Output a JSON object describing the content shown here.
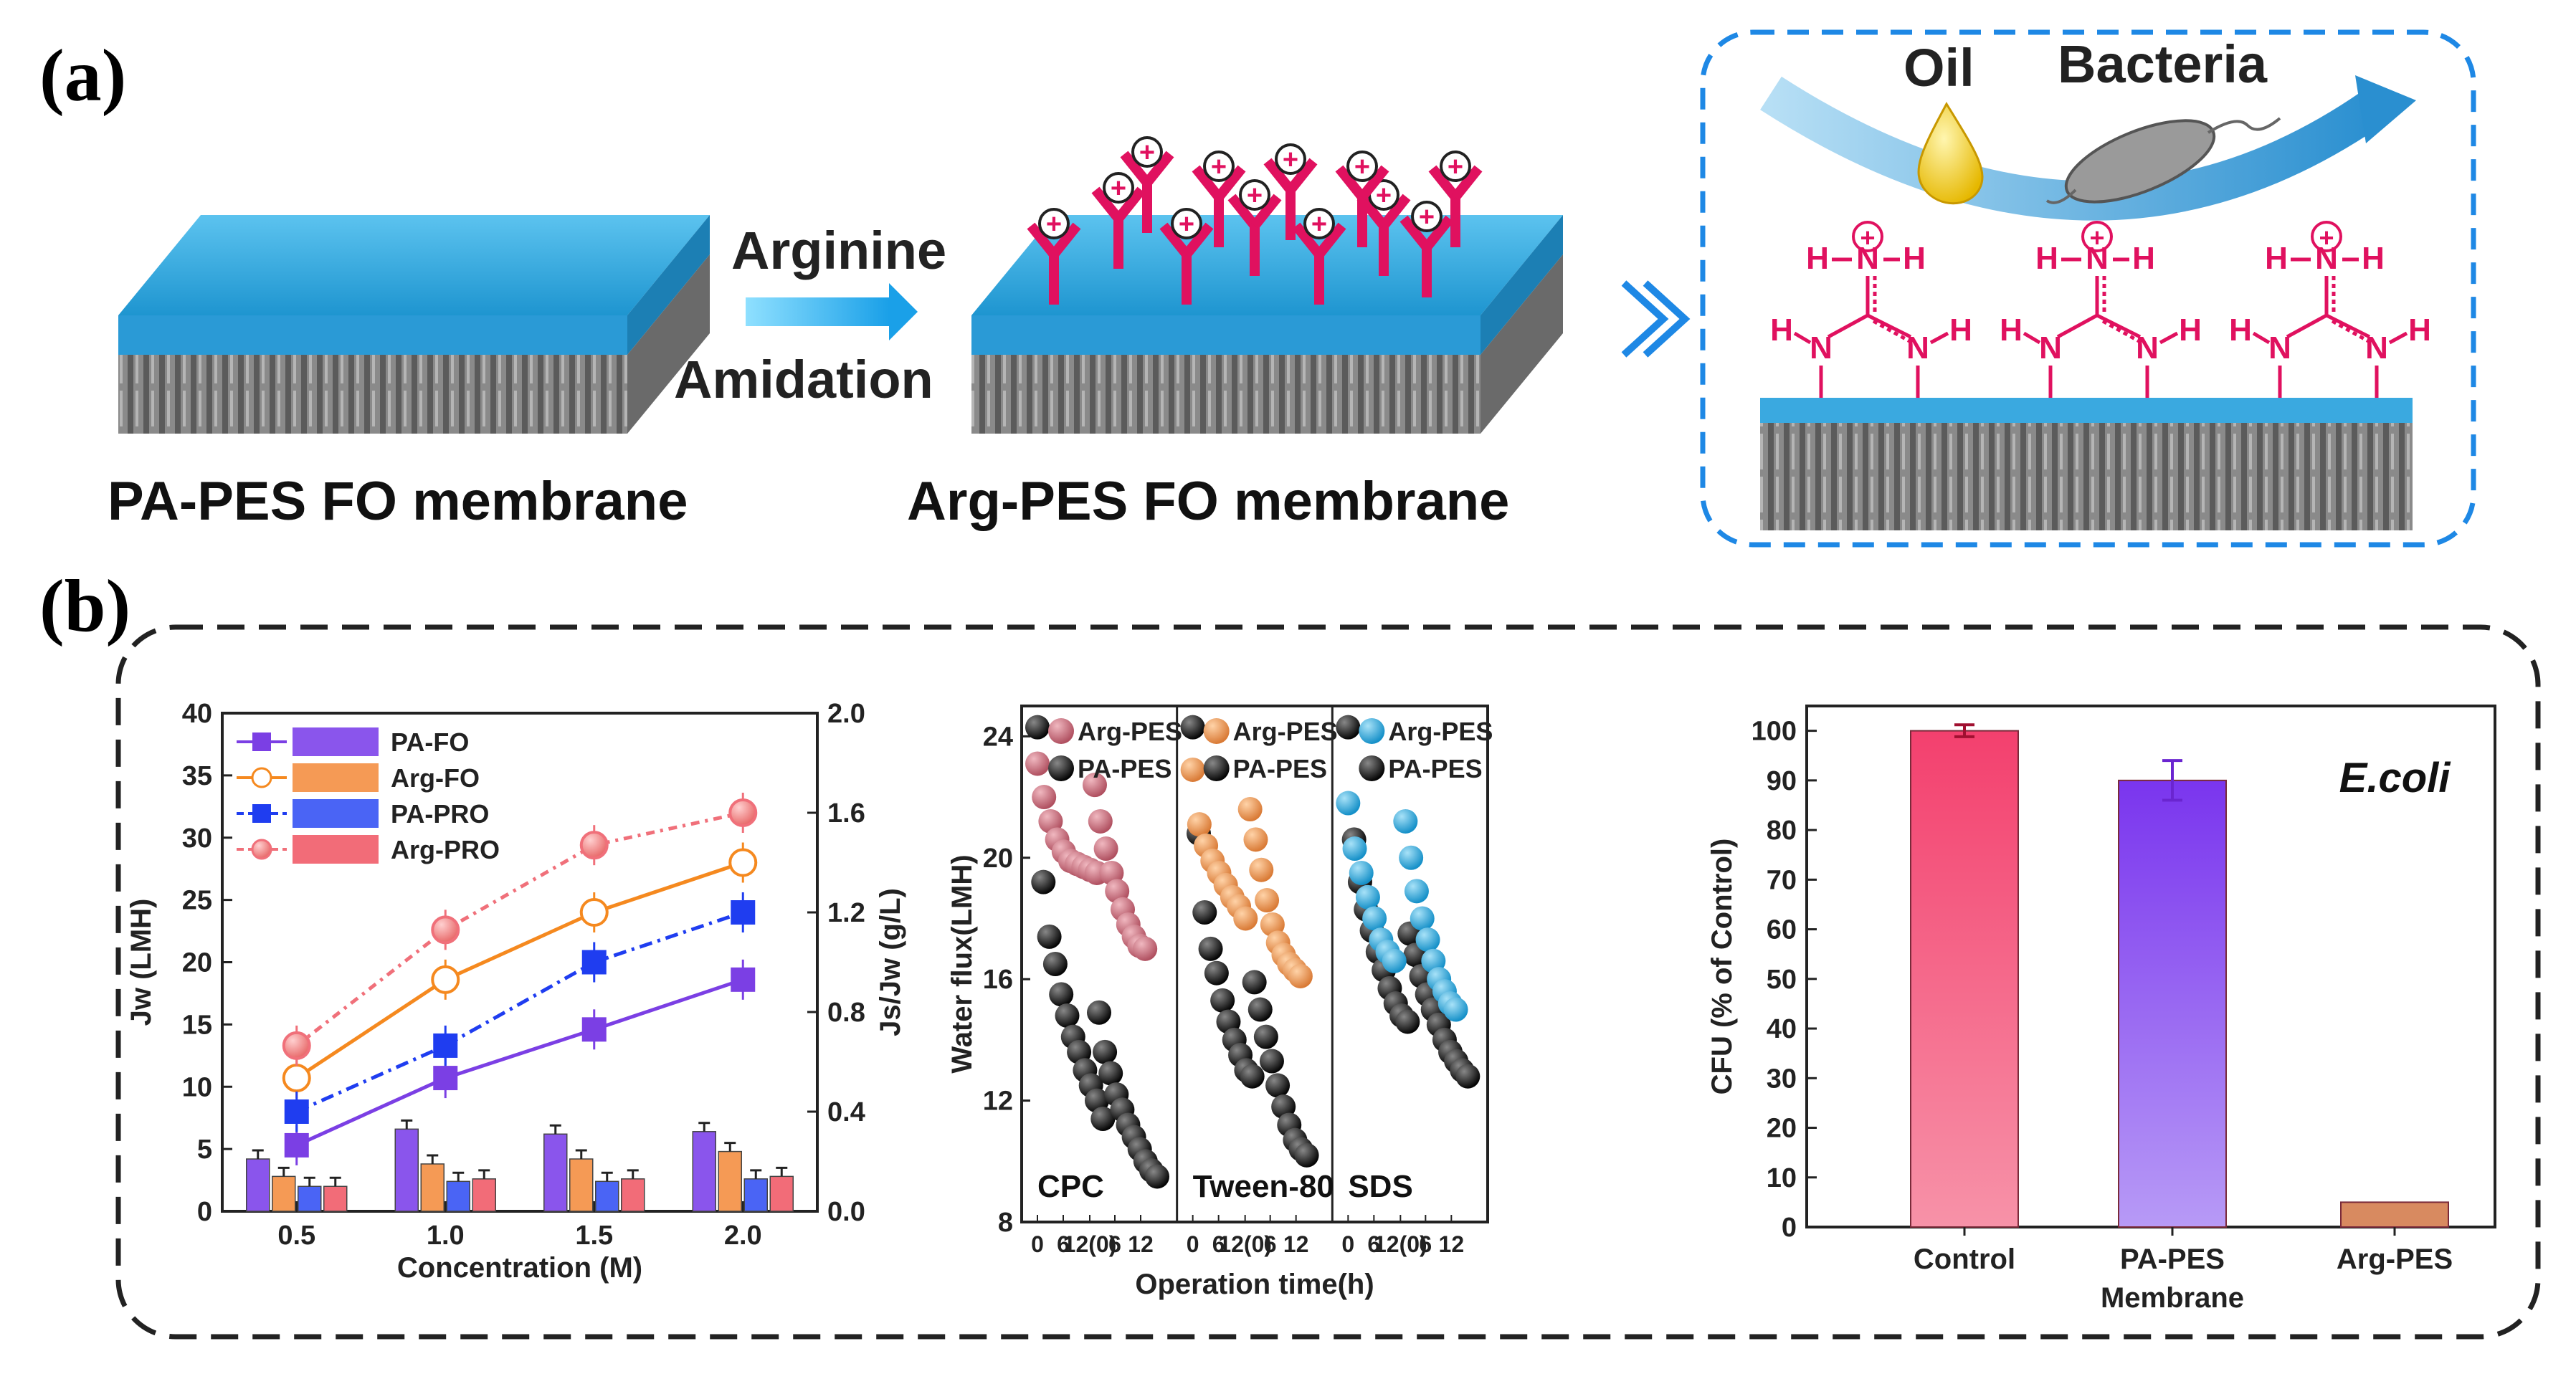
{
  "panel_a": {
    "label": "(a)",
    "left_membrane_caption": "PA-PES FO membrane",
    "right_membrane_caption": "Arg-PES FO membrane",
    "arrow_top_text": "Arginine",
    "arrow_bottom_text": "Amidation",
    "inset": {
      "oil_label": "Oil",
      "bacteria_label": "Bacteria",
      "charge_symbol": "+",
      "atom_H": "H",
      "atom_N": "N"
    },
    "colors": {
      "membrane_top": "#2aa3dc",
      "ligand": "#e0115f",
      "inset_border": "#1e88e5"
    }
  },
  "panel_b": {
    "label": "(b)",
    "chart_data": [
      {
        "type": "line+bar",
        "x_ticks": [
          "0.5",
          "1.0",
          "1.5",
          "2.0"
        ],
        "xlabel": "Concentration (M)",
        "ylabel_left": "Jw (LMH)",
        "ylabel_right": "Js/Jw (g/L)",
        "ylim_left": [
          0,
          40
        ],
        "ylim_right": [
          0,
          2.0
        ],
        "yticks_left": [
          "0",
          "5",
          "10",
          "15",
          "20",
          "25",
          "30",
          "35",
          "40"
        ],
        "yticks_right": [
          "0.0",
          "0.4",
          "0.8",
          "1.2",
          "1.6",
          "2.0"
        ],
        "categories": [
          0.5,
          1.0,
          1.5,
          2.0
        ],
        "series": [
          {
            "name": "PA-FO",
            "color": "#7b3fe4",
            "jw": [
              5.3,
              10.7,
              14.6,
              18.6
            ],
            "js_jw": [
              0.21,
              0.33,
              0.31,
              0.32
            ]
          },
          {
            "name": "Arg-FO",
            "color": "#f5891f",
            "jw": [
              10.7,
              18.6,
              24.0,
              28.0
            ],
            "js_jw": [
              0.14,
              0.19,
              0.21,
              0.24
            ]
          },
          {
            "name": "PA-PRO",
            "color": "#1f3df0",
            "jw": [
              8.0,
              13.3,
              20.0,
              24.0
            ],
            "js_jw": [
              0.1,
              0.12,
              0.12,
              0.13
            ]
          },
          {
            "name": "Arg-PRO",
            "color": "#f0707a",
            "jw": [
              13.3,
              22.6,
              29.4,
              32.0
            ],
            "js_jw": [
              0.1,
              0.13,
              0.13,
              0.14
            ]
          }
        ]
      },
      {
        "type": "scatter",
        "ylabel": "Water flux(LMH)",
        "xlabel": "Operation time(h)",
        "ylim": [
          8,
          25
        ],
        "yticks": [
          "8",
          "12",
          "16",
          "20",
          "24"
        ],
        "x_ticks": [
          "0",
          "6",
          "12(0)",
          "6",
          "12"
        ],
        "subpanels": [
          {
            "name": "CPC",
            "arg_color": "#c06070",
            "legend": [
              "Arg-PES",
              "PA-PES"
            ],
            "arg_run1": [
              23.1,
              22.0,
              21.2,
              20.6,
              20.2,
              19.9,
              19.8,
              19.7,
              19.6,
              19.5
            ],
            "arg_run2": [
              22.4,
              21.2,
              20.3,
              19.5,
              18.9,
              18.3,
              17.8,
              17.4,
              17.1,
              17.0
            ],
            "pa_run1": [
              24.3,
              19.2,
              17.4,
              16.5,
              15.5,
              14.8,
              14.1,
              13.6,
              13.0,
              12.5,
              12.0,
              11.4
            ],
            "pa_run2": [
              14.9,
              13.6,
              12.9,
              12.2,
              11.7,
              11.2,
              10.8,
              10.4,
              10.0,
              9.7,
              9.5
            ]
          },
          {
            "name": "Tween-80",
            "arg_color": "#e38b45",
            "legend": [
              "Arg-PES",
              "PA-PES"
            ],
            "arg_run1": [
              22.9,
              21.1,
              20.4,
              19.9,
              19.5,
              19.1,
              18.7,
              18.4,
              18.0
            ],
            "arg_run2": [
              21.6,
              20.6,
              19.6,
              18.6,
              17.8,
              17.2,
              16.8,
              16.5,
              16.3,
              16.1
            ],
            "pa_run1": [
              24.3,
              20.8,
              18.2,
              17.0,
              16.2,
              15.3,
              14.6,
              14.0,
              13.5,
              13.0,
              12.8
            ],
            "pa_run2": [
              15.9,
              15.0,
              14.1,
              13.3,
              12.5,
              11.8,
              11.2,
              10.7,
              10.4,
              10.2
            ]
          },
          {
            "name": "SDS",
            "arg_color": "#1f9fd2",
            "legend": [
              "Arg-PES",
              "PA-PES"
            ],
            "arg_run1": [
              21.8,
              20.3,
              19.5,
              18.7,
              18.0,
              17.3,
              16.9,
              16.6
            ],
            "arg_run2": [
              21.2,
              20.0,
              18.9,
              18.0,
              17.3,
              16.6,
              16.0,
              15.6,
              15.2,
              15.0
            ],
            "pa_run1": [
              24.3,
              20.6,
              19.2,
              18.3,
              17.6,
              16.9,
              16.3,
              15.7,
              15.2,
              14.8,
              14.6
            ],
            "pa_run2": [
              17.5,
              16.8,
              16.1,
              15.5,
              15.0,
              14.5,
              14.0,
              13.6,
              13.3,
              13.0,
              12.8
            ]
          }
        ]
      },
      {
        "type": "bar",
        "title": "E.coli",
        "ylabel": "CFU (% of Control)",
        "xlabel": "Membrane",
        "categories": [
          "Control",
          "PA-PES",
          "Arg-PES"
        ],
        "values": [
          100,
          90,
          5
        ],
        "errors": [
          1.2,
          4.0,
          0
        ],
        "colors": [
          "#f2537a",
          "#8b45ef",
          "#d88a60"
        ],
        "ylim": [
          0,
          105
        ],
        "yticks": [
          "0",
          "10",
          "20",
          "30",
          "40",
          "50",
          "60",
          "70",
          "80",
          "90",
          "100"
        ]
      }
    ]
  }
}
